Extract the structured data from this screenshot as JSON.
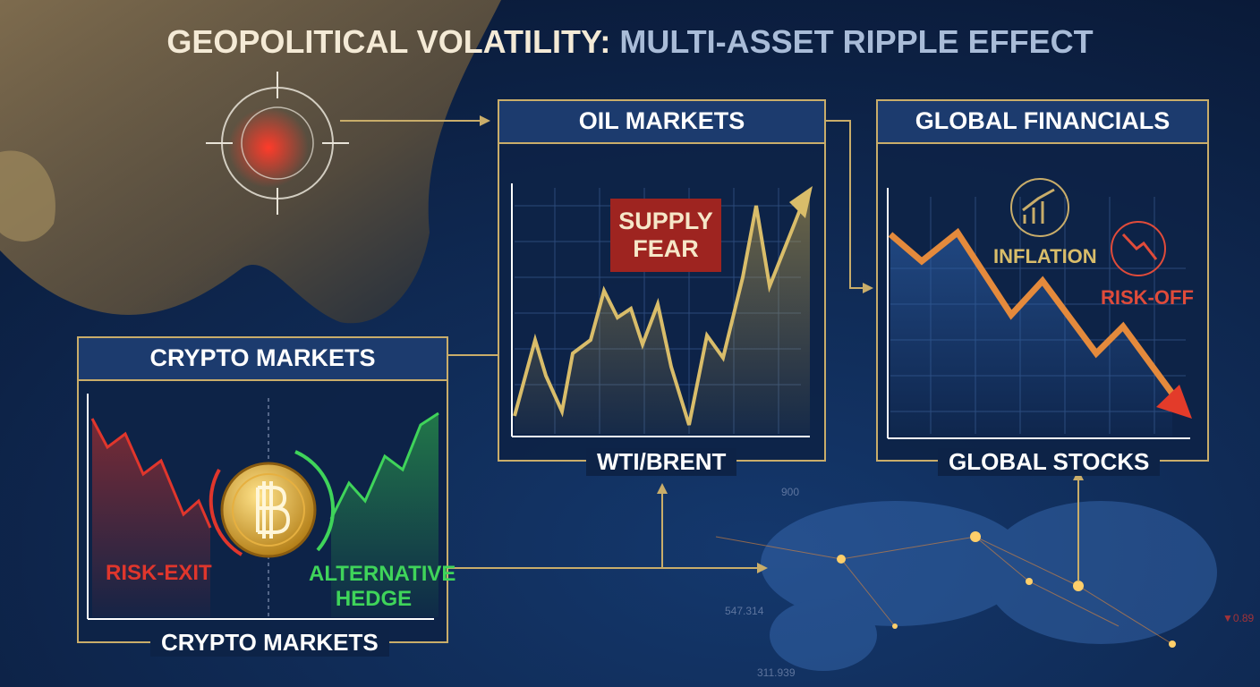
{
  "title": {
    "lead": "GEOPOLITICAL VOLATILITY:",
    "rest": "MULTI-ASSET RIPPLE EFFECT"
  },
  "panels": [
    {
      "title": "OIL MARKETS",
      "caption": "WTI/BRENT",
      "annotations": [
        "SUPPLY FEAR"
      ]
    },
    {
      "title": "GLOBAL FINANCIALS",
      "caption": "GLOBAL STOCKS",
      "annotations": [
        "INFLATION",
        "RISK-OFF"
      ]
    },
    {
      "title": "CRYPTO MARKETS",
      "caption": "CRYPTO MARKETS",
      "annotations": [
        "RISK-EXIT",
        "ALTERNATIVE HEDGE"
      ]
    }
  ],
  "background_numbers": [
    "547.314",
    "311.939",
    "▼0.89",
    "900"
  ]
}
